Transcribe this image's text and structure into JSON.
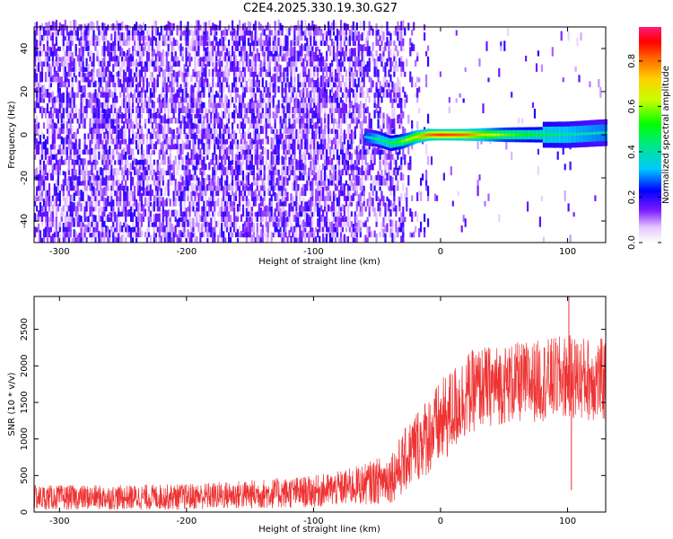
{
  "title": "C2E4.2025.330.19.30.G27",
  "colors": {
    "snr_line": "#ee3333",
    "peak": "#ff1a7a",
    "noise": "#7a1aff",
    "background": "#ffffff"
  },
  "chart_data": [
    {
      "type": "heatmap",
      "name": "spectrogram",
      "xlabel": "Height of straight line (km)",
      "ylabel": "Frequency (Hz)",
      "xlim": [
        -320,
        130
      ],
      "ylim": [
        -50,
        50
      ],
      "xticks": [
        -300,
        -200,
        -100,
        0,
        100
      ],
      "yticks": [
        -40,
        -20,
        0,
        20,
        40
      ],
      "colorbar": {
        "label": "Normalized spectral amplitude",
        "range": [
          0,
          0.95
        ],
        "ticks": [
          0.0,
          0.2,
          0.4,
          0.6,
          0.8
        ]
      },
      "signal_trace": {
        "x": [
          -60,
          -50,
          -40,
          -30,
          -20,
          -10,
          0,
          20,
          50,
          80,
          100,
          130
        ],
        "frequency_hz": [
          -1,
          -2,
          -4,
          -3,
          -1,
          0,
          0,
          0,
          0,
          0,
          0,
          1
        ],
        "amplitude": [
          0.35,
          0.45,
          0.5,
          0.6,
          0.75,
          0.85,
          0.9,
          0.85,
          0.6,
          0.5,
          0.45,
          0.4
        ]
      },
      "noise_region_x": [
        -320,
        -30
      ]
    },
    {
      "type": "line",
      "name": "snr",
      "xlabel": "Height of straight line (km)",
      "ylabel": "SNR (10 * v/v)",
      "xlim": [
        -320,
        130
      ],
      "ylim": [
        0,
        2950
      ],
      "xticks": [
        -300,
        -200,
        -100,
        0,
        100
      ],
      "yticks": [
        0,
        500,
        1000,
        1500,
        2000,
        2500
      ],
      "envelope": {
        "x": [
          -320,
          -300,
          -250,
          -200,
          -150,
          -100,
          -80,
          -60,
          -40,
          -30,
          -20,
          -10,
          0,
          10,
          20,
          30,
          50,
          80,
          100,
          130
        ],
        "mean": [
          200,
          200,
          200,
          210,
          240,
          280,
          320,
          380,
          470,
          650,
          900,
          1050,
          1200,
          1400,
          1600,
          1700,
          1750,
          1800,
          1850,
          1800
        ],
        "spread": [
          170,
          170,
          170,
          180,
          200,
          220,
          240,
          280,
          350,
          430,
          500,
          550,
          600,
          600,
          580,
          560,
          550,
          560,
          580,
          580
        ]
      },
      "features": [
        {
          "x": 101,
          "y": 2950,
          "note": "peak"
        },
        {
          "x": 103,
          "y": 300,
          "note": "dip"
        }
      ]
    }
  ]
}
